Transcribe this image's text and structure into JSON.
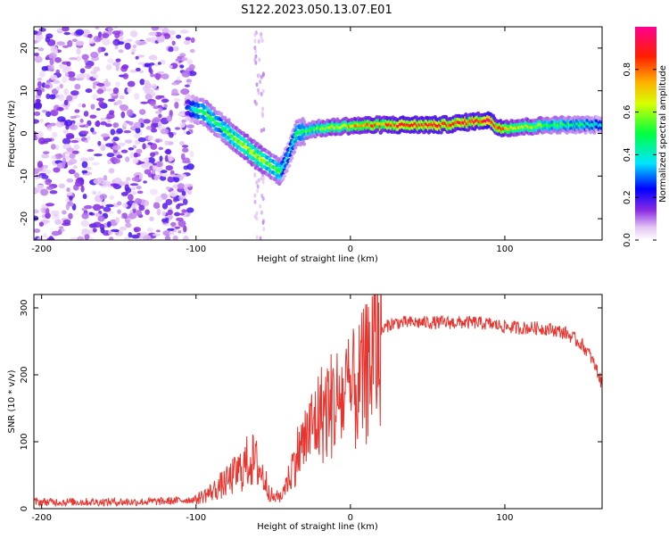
{
  "title": "S122.2023.050.13.07.E01",
  "colors": {
    "snr_line": "#e8352f",
    "axis": "#000000"
  },
  "chart_data": [
    {
      "type": "heatmap",
      "title": "S122.2023.050.13.07.E01",
      "xlabel": "Height of straight line (km)",
      "ylabel": "Frequency (Hz)",
      "xlim": [
        -205,
        163
      ],
      "ylim": [
        -25,
        25
      ],
      "xticks": [
        -200,
        -100,
        0,
        100
      ],
      "xtick_labels": [
        "-200",
        "-100",
        "0",
        "100"
      ],
      "yticks": [
        -20,
        -10,
        0,
        10,
        20
      ],
      "ytick_labels": [
        "-20",
        "-10",
        "0",
        "10",
        "20"
      ],
      "colorbar": {
        "label": "Normalized spectral amplitude",
        "range": [
          0,
          1
        ],
        "ticks": [
          0.0,
          0.2,
          0.4,
          0.6,
          0.8
        ],
        "tick_labels": [
          "0.0",
          "0.2",
          "0.4",
          "0.6",
          "0.8"
        ]
      },
      "ridge": {
        "description_points_x": [
          -105,
          -95,
          -85,
          -75,
          -65,
          -55,
          -45,
          -40,
          -35,
          -25,
          -10,
          0,
          20,
          40,
          60,
          80,
          90,
          95,
          100,
          110,
          130,
          150,
          163
        ],
        "description_points_y": [
          6,
          5,
          2,
          -1,
          -4,
          -7,
          -9,
          -5,
          0,
          1,
          1.5,
          1.8,
          2,
          2,
          2,
          2.8,
          3.2,
          1.5,
          1.3,
          1.5,
          2,
          2,
          2
        ],
        "amplitude": [
          0.3,
          0.55,
          0.5,
          0.55,
          0.6,
          0.6,
          0.5,
          0.35,
          0.45,
          0.55,
          0.7,
          0.75,
          0.85,
          0.9,
          0.9,
          0.95,
          0.98,
          0.9,
          0.85,
          0.7,
          0.55,
          0.5,
          0.4
        ]
      },
      "noise_region_x": [
        -205,
        -102
      ]
    },
    {
      "type": "line",
      "xlabel": "Height of straight line (km)",
      "ylabel": "SNR (10 * v/v)",
      "xlim": [
        -205,
        163
      ],
      "ylim": [
        0,
        320
      ],
      "xticks": [
        -200,
        -100,
        0,
        100
      ],
      "xtick_labels": [
        "-200",
        "-100",
        "0",
        "100"
      ],
      "yticks": [
        0,
        100,
        200,
        300
      ],
      "ytick_labels": [
        "0",
        "100",
        "200",
        "300"
      ],
      "series": [
        {
          "name": "SNR",
          "x": [
            -205,
            -180,
            -160,
            -140,
            -120,
            -100,
            -90,
            -80,
            -70,
            -65,
            -60,
            -55,
            -50,
            -45,
            -40,
            -35,
            -30,
            -25,
            -20,
            -15,
            -10,
            -5,
            0,
            5,
            10,
            15,
            20,
            25,
            30,
            40,
            50,
            60,
            70,
            80,
            90,
            100,
            110,
            120,
            130,
            140,
            150,
            155,
            160,
            163
          ],
          "y": [
            10,
            10,
            10,
            10,
            11,
            14,
            25,
            40,
            60,
            75,
            65,
            40,
            15,
            20,
            45,
            80,
            100,
            120,
            140,
            150,
            160,
            165,
            170,
            180,
            200,
            240,
            265,
            275,
            278,
            278,
            278,
            278,
            278,
            278,
            276,
            272,
            270,
            270,
            268,
            262,
            245,
            230,
            205,
            185
          ]
        }
      ]
    }
  ]
}
